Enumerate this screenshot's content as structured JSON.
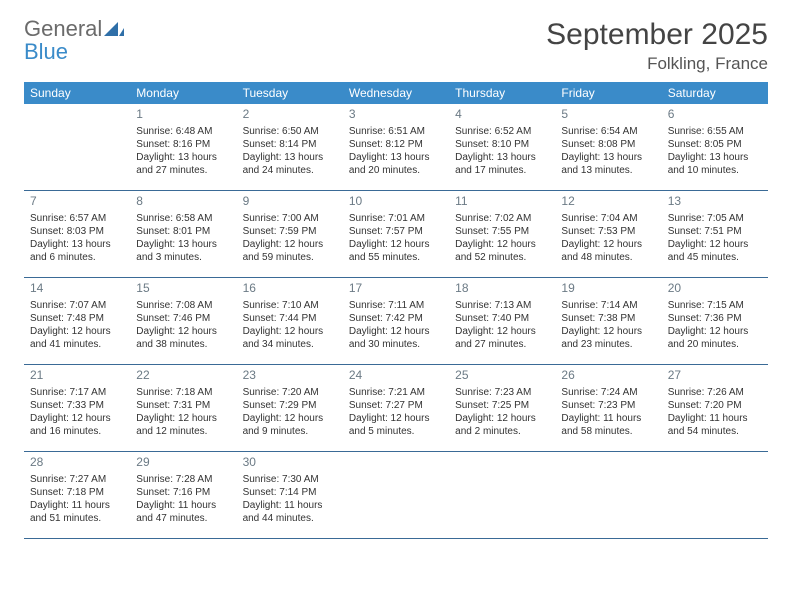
{
  "logo": {
    "general": "General",
    "blue": "Blue"
  },
  "title": "September 2025",
  "location": "Folkling, France",
  "weekdays": [
    "Sunday",
    "Monday",
    "Tuesday",
    "Wednesday",
    "Thursday",
    "Friday",
    "Saturday"
  ],
  "colors": {
    "header_bg": "#3a8bc9",
    "header_text": "#ffffff",
    "divider": "#3a6a96",
    "logo_gray": "#6b6b6b",
    "logo_blue": "#3a8bc9",
    "daynum": "#6b7a85",
    "body_text": "#333333",
    "background": "#ffffff"
  },
  "typography": {
    "title_fontsize": 30,
    "location_fontsize": 17,
    "weekday_fontsize": 12,
    "daynum_fontsize": 12,
    "cell_fontsize": 10
  },
  "layout": {
    "columns": 7,
    "rows": 5,
    "first_day_column": 1
  },
  "days": [
    {
      "n": 1,
      "sunrise": "6:48 AM",
      "sunset": "8:16 PM",
      "daylight": "13 hours and 27 minutes."
    },
    {
      "n": 2,
      "sunrise": "6:50 AM",
      "sunset": "8:14 PM",
      "daylight": "13 hours and 24 minutes."
    },
    {
      "n": 3,
      "sunrise": "6:51 AM",
      "sunset": "8:12 PM",
      "daylight": "13 hours and 20 minutes."
    },
    {
      "n": 4,
      "sunrise": "6:52 AM",
      "sunset": "8:10 PM",
      "daylight": "13 hours and 17 minutes."
    },
    {
      "n": 5,
      "sunrise": "6:54 AM",
      "sunset": "8:08 PM",
      "daylight": "13 hours and 13 minutes."
    },
    {
      "n": 6,
      "sunrise": "6:55 AM",
      "sunset": "8:05 PM",
      "daylight": "13 hours and 10 minutes."
    },
    {
      "n": 7,
      "sunrise": "6:57 AM",
      "sunset": "8:03 PM",
      "daylight": "13 hours and 6 minutes."
    },
    {
      "n": 8,
      "sunrise": "6:58 AM",
      "sunset": "8:01 PM",
      "daylight": "13 hours and 3 minutes."
    },
    {
      "n": 9,
      "sunrise": "7:00 AM",
      "sunset": "7:59 PM",
      "daylight": "12 hours and 59 minutes."
    },
    {
      "n": 10,
      "sunrise": "7:01 AM",
      "sunset": "7:57 PM",
      "daylight": "12 hours and 55 minutes."
    },
    {
      "n": 11,
      "sunrise": "7:02 AM",
      "sunset": "7:55 PM",
      "daylight": "12 hours and 52 minutes."
    },
    {
      "n": 12,
      "sunrise": "7:04 AM",
      "sunset": "7:53 PM",
      "daylight": "12 hours and 48 minutes."
    },
    {
      "n": 13,
      "sunrise": "7:05 AM",
      "sunset": "7:51 PM",
      "daylight": "12 hours and 45 minutes."
    },
    {
      "n": 14,
      "sunrise": "7:07 AM",
      "sunset": "7:48 PM",
      "daylight": "12 hours and 41 minutes."
    },
    {
      "n": 15,
      "sunrise": "7:08 AM",
      "sunset": "7:46 PM",
      "daylight": "12 hours and 38 minutes."
    },
    {
      "n": 16,
      "sunrise": "7:10 AM",
      "sunset": "7:44 PM",
      "daylight": "12 hours and 34 minutes."
    },
    {
      "n": 17,
      "sunrise": "7:11 AM",
      "sunset": "7:42 PM",
      "daylight": "12 hours and 30 minutes."
    },
    {
      "n": 18,
      "sunrise": "7:13 AM",
      "sunset": "7:40 PM",
      "daylight": "12 hours and 27 minutes."
    },
    {
      "n": 19,
      "sunrise": "7:14 AM",
      "sunset": "7:38 PM",
      "daylight": "12 hours and 23 minutes."
    },
    {
      "n": 20,
      "sunrise": "7:15 AM",
      "sunset": "7:36 PM",
      "daylight": "12 hours and 20 minutes."
    },
    {
      "n": 21,
      "sunrise": "7:17 AM",
      "sunset": "7:33 PM",
      "daylight": "12 hours and 16 minutes."
    },
    {
      "n": 22,
      "sunrise": "7:18 AM",
      "sunset": "7:31 PM",
      "daylight": "12 hours and 12 minutes."
    },
    {
      "n": 23,
      "sunrise": "7:20 AM",
      "sunset": "7:29 PM",
      "daylight": "12 hours and 9 minutes."
    },
    {
      "n": 24,
      "sunrise": "7:21 AM",
      "sunset": "7:27 PM",
      "daylight": "12 hours and 5 minutes."
    },
    {
      "n": 25,
      "sunrise": "7:23 AM",
      "sunset": "7:25 PM",
      "daylight": "12 hours and 2 minutes."
    },
    {
      "n": 26,
      "sunrise": "7:24 AM",
      "sunset": "7:23 PM",
      "daylight": "11 hours and 58 minutes."
    },
    {
      "n": 27,
      "sunrise": "7:26 AM",
      "sunset": "7:20 PM",
      "daylight": "11 hours and 54 minutes."
    },
    {
      "n": 28,
      "sunrise": "7:27 AM",
      "sunset": "7:18 PM",
      "daylight": "11 hours and 51 minutes."
    },
    {
      "n": 29,
      "sunrise": "7:28 AM",
      "sunset": "7:16 PM",
      "daylight": "11 hours and 47 minutes."
    },
    {
      "n": 30,
      "sunrise": "7:30 AM",
      "sunset": "7:14 PM",
      "daylight": "11 hours and 44 minutes."
    }
  ],
  "labels": {
    "sunrise": "Sunrise:",
    "sunset": "Sunset:",
    "daylight": "Daylight:"
  }
}
